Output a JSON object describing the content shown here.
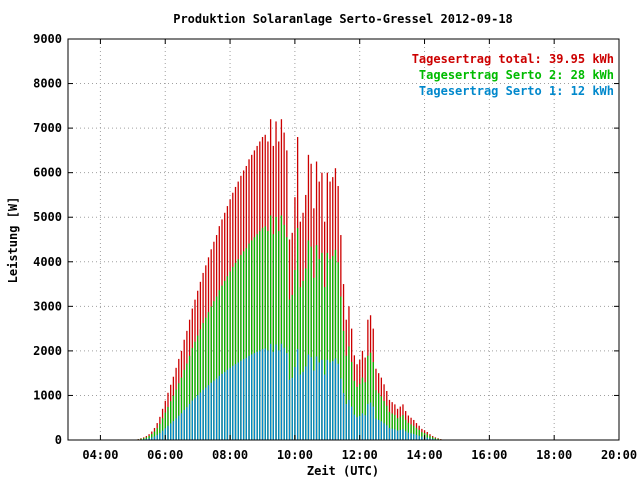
{
  "chart_data": {
    "type": "bar",
    "title": "Produktion Solaranlage Serto-Gressel 2012-09-18",
    "xlabel": "Zeit (UTC)",
    "ylabel": "Leistung [W]",
    "xlim": [
      "03:00",
      "20:00"
    ],
    "ylim": [
      0,
      9000
    ],
    "x_ticks": [
      "04:00",
      "06:00",
      "08:00",
      "10:00",
      "12:00",
      "14:00",
      "16:00",
      "18:00",
      "20:00"
    ],
    "y_ticks": [
      "0",
      "1000",
      "2000",
      "3000",
      "4000",
      "5000",
      "6000",
      "7000",
      "8000",
      "9000"
    ],
    "grid": true,
    "legend_position": "top-right",
    "legend": [
      {
        "label": "Tagesertrag total: 39.95 kWh",
        "color": "#cc0000"
      },
      {
        "label": "Tagesertrag Serto 2: 28 kWh",
        "color": "#00bb00"
      },
      {
        "label": "Tagesertrag Serto 1: 12 kWh",
        "color": "#0088cc"
      }
    ],
    "x_step_minutes": 5,
    "x_start": "05:10",
    "series": [
      {
        "name": "Tagesertrag total: 39.95 kWh",
        "color": "#cc0000",
        "values": [
          20,
          40,
          60,
          90,
          130,
          190,
          270,
          380,
          520,
          700,
          880,
          1060,
          1240,
          1420,
          1620,
          1820,
          2000,
          2250,
          2450,
          2700,
          2950,
          3150,
          3350,
          3550,
          3750,
          3920,
          4100,
          4280,
          4450,
          4600,
          4800,
          4950,
          5100,
          5250,
          5400,
          5550,
          5680,
          5800,
          5930,
          6050,
          6150,
          6300,
          6400,
          6500,
          6600,
          6700,
          6800,
          6850,
          6700,
          7200,
          6600,
          7150,
          6700,
          7200,
          6900,
          6500,
          4500,
          4650,
          5450,
          6800,
          4900,
          5100,
          5500,
          6400,
          6200,
          5200,
          6250,
          5800,
          6000,
          4900,
          6000,
          5800,
          5900,
          6100,
          5700,
          4600,
          3500,
          2700,
          3000,
          2500,
          1900,
          1700,
          1800,
          2000,
          1850,
          2700,
          2800,
          2500,
          1600,
          1500,
          1400,
          1250,
          1100,
          900,
          850,
          800,
          700,
          750,
          800,
          650,
          550,
          500,
          450,
          380,
          320,
          250,
          220,
          180,
          130,
          90,
          60,
          40,
          20,
          10
        ]
      },
      {
        "name": "Tagesertrag Serto 2: 28 kWh",
        "color": "#00bb00",
        "values": [
          15,
          28,
          42,
          62,
          90,
          133,
          189,
          266,
          364,
          490,
          616,
          742,
          868,
          994,
          1134,
          1274,
          1400,
          1575,
          1715,
          1890,
          2065,
          2205,
          2345,
          2485,
          2625,
          2744,
          2870,
          2996,
          3115,
          3220,
          3360,
          3465,
          3570,
          3675,
          3780,
          3885,
          3976,
          4060,
          4151,
          4235,
          4305,
          4410,
          4480,
          4550,
          4620,
          4690,
          4760,
          4795,
          4690,
          5040,
          4620,
          5005,
          4690,
          5040,
          4830,
          4550,
          3150,
          3255,
          3815,
          4760,
          3430,
          3570,
          3850,
          4480,
          4340,
          3640,
          4375,
          4060,
          4200,
          3430,
          4200,
          4060,
          4130,
          4270,
          3990,
          3220,
          2450,
          1890,
          2100,
          1750,
          1330,
          1190,
          1260,
          1400,
          1295,
          1890,
          1960,
          1750,
          1120,
          1050,
          980,
          875,
          770,
          630,
          595,
          560,
          490,
          525,
          560,
          455,
          385,
          350,
          315,
          266,
          224,
          175,
          154,
          126,
          91,
          63,
          42,
          28,
          14,
          7
        ]
      },
      {
        "name": "Tagesertrag Serto 1: 12 kWh",
        "color": "#0088cc",
        "values": [
          6,
          12,
          18,
          27,
          39,
          57,
          81,
          114,
          156,
          210,
          264,
          318,
          372,
          426,
          486,
          546,
          600,
          675,
          735,
          810,
          885,
          945,
          1005,
          1065,
          1125,
          1176,
          1230,
          1284,
          1335,
          1380,
          1440,
          1485,
          1530,
          1575,
          1620,
          1665,
          1704,
          1740,
          1779,
          1815,
          1845,
          1890,
          1920,
          1950,
          1980,
          2010,
          2040,
          2055,
          2010,
          2160,
          1980,
          2145,
          2010,
          2160,
          2070,
          1950,
          1350,
          1395,
          1635,
          2040,
          1470,
          1530,
          1650,
          1920,
          1860,
          1560,
          1875,
          1740,
          1800,
          1470,
          1800,
          1740,
          1770,
          1830,
          1710,
          1380,
          1050,
          810,
          900,
          750,
          570,
          510,
          540,
          600,
          555,
          810,
          840,
          750,
          480,
          450,
          420,
          375,
          330,
          270,
          255,
          240,
          210,
          225,
          240,
          195,
          165,
          150,
          135,
          114,
          96,
          75,
          66,
          54,
          39,
          27,
          18,
          12,
          6,
          3
        ]
      }
    ]
  }
}
